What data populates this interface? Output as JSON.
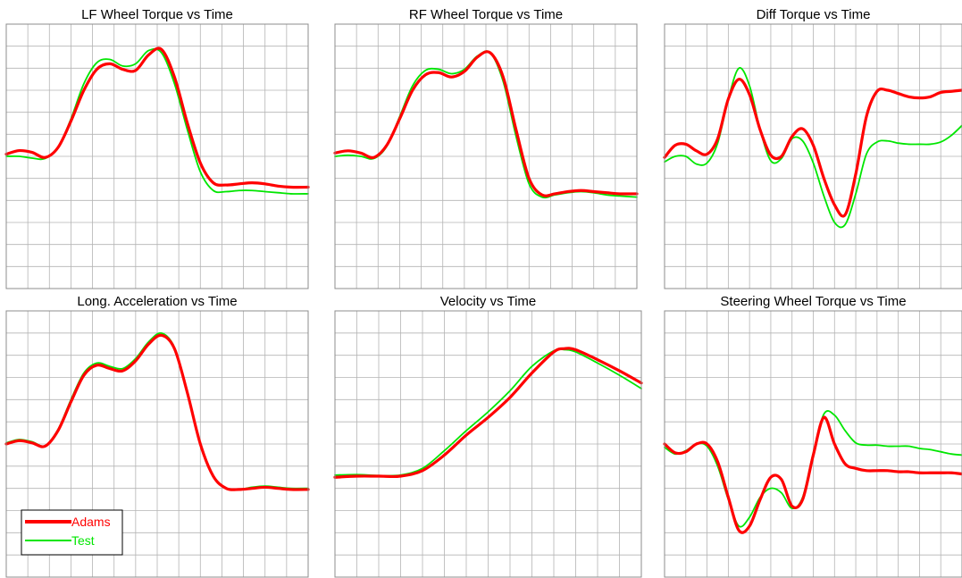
{
  "colors": {
    "adams": "#ff0000",
    "test": "#00e600",
    "grid": "#b4b4b4",
    "axis": "#8c8c8c",
    "text": "#000000"
  },
  "legend": {
    "entries": [
      "Adams",
      "Test"
    ],
    "placement": "bottom-left of Long. Acceleration plot"
  },
  "chart_data": [
    {
      "type": "line",
      "title": "LF Wheel Torque vs Time",
      "xlabel": "",
      "ylabel": "",
      "xlim": [
        0,
        14
      ],
      "ylim": [
        -6,
        6
      ],
      "grid": true,
      "series": [
        {
          "name": "Adams",
          "color": "#ff0000",
          "x": [
            0,
            0.6,
            1.2,
            1.8,
            2.4,
            3.0,
            3.6,
            4.2,
            4.8,
            5.4,
            6.0,
            6.6,
            7.2,
            7.8,
            8.4,
            9.0,
            9.6,
            10.2,
            10.8,
            11.4,
            12.0,
            12.6,
            13.2,
            14.0
          ],
          "y": [
            0.1,
            0.26,
            0.18,
            -0.05,
            0.4,
            1.6,
            3.0,
            3.95,
            4.2,
            3.95,
            3.9,
            4.6,
            4.85,
            3.6,
            1.5,
            -0.3,
            -1.2,
            -1.3,
            -1.25,
            -1.2,
            -1.25,
            -1.35,
            -1.4,
            -1.4
          ]
        },
        {
          "name": "Test",
          "color": "#00e600",
          "x": [
            0,
            0.6,
            1.2,
            1.8,
            2.4,
            3.0,
            3.6,
            4.2,
            4.8,
            5.4,
            6.0,
            6.6,
            7.2,
            7.8,
            8.4,
            9.0,
            9.6,
            10.2,
            10.8,
            11.4,
            12.0,
            12.6,
            13.2,
            14.0
          ],
          "y": [
            0.0,
            0.0,
            -0.08,
            -0.1,
            0.4,
            1.7,
            3.3,
            4.25,
            4.4,
            4.1,
            4.2,
            4.8,
            4.7,
            3.3,
            1.2,
            -0.7,
            -1.55,
            -1.6,
            -1.55,
            -1.55,
            -1.6,
            -1.65,
            -1.7,
            -1.7
          ]
        }
      ]
    },
    {
      "type": "line",
      "title": "RF Wheel Torque vs Time",
      "xlabel": "",
      "ylabel": "",
      "xlim": [
        0,
        14
      ],
      "ylim": [
        -6,
        6
      ],
      "grid": true,
      "series": [
        {
          "name": "Adams",
          "color": "#ff0000",
          "x": [
            0,
            0.6,
            1.2,
            1.8,
            2.4,
            3.0,
            3.6,
            4.2,
            4.8,
            5.4,
            6.0,
            6.6,
            7.2,
            7.8,
            8.4,
            9.0,
            9.6,
            10.2,
            10.8,
            11.4,
            12.0,
            12.6,
            13.2,
            14.0
          ],
          "y": [
            0.15,
            0.25,
            0.15,
            -0.05,
            0.5,
            1.7,
            3.0,
            3.7,
            3.8,
            3.6,
            3.85,
            4.5,
            4.7,
            3.6,
            1.2,
            -1.0,
            -1.75,
            -1.7,
            -1.6,
            -1.55,
            -1.6,
            -1.65,
            -1.7,
            -1.7
          ]
        },
        {
          "name": "Test",
          "color": "#00e600",
          "x": [
            0,
            0.6,
            1.2,
            1.8,
            2.4,
            3.0,
            3.6,
            4.2,
            4.8,
            5.4,
            6.0,
            6.6,
            7.2,
            7.8,
            8.4,
            9.0,
            9.6,
            10.2,
            10.8,
            11.4,
            12.0,
            12.6,
            13.2,
            14.0
          ],
          "y": [
            0.0,
            0.05,
            0.0,
            -0.1,
            0.45,
            1.8,
            3.2,
            3.9,
            3.95,
            3.75,
            3.95,
            4.55,
            4.7,
            3.4,
            0.9,
            -1.25,
            -1.85,
            -1.75,
            -1.65,
            -1.6,
            -1.65,
            -1.75,
            -1.8,
            -1.85
          ]
        }
      ]
    },
    {
      "type": "line",
      "title": "Diff Torque vs Time",
      "xlabel": "",
      "ylabel": "",
      "xlim": [
        0,
        14
      ],
      "ylim": [
        -6,
        6
      ],
      "grid": true,
      "series": [
        {
          "name": "Adams",
          "color": "#ff0000",
          "x": [
            0,
            0.5,
            1.0,
            1.5,
            2.0,
            2.5,
            3.0,
            3.5,
            4.0,
            4.5,
            5.0,
            5.5,
            6.0,
            6.5,
            7.0,
            7.5,
            8.0,
            8.5,
            9.0,
            9.5,
            10.0,
            10.5,
            11.0,
            11.5,
            12.0,
            12.5,
            13.0,
            13.5,
            14.0
          ],
          "y": [
            -0.05,
            0.5,
            0.55,
            0.25,
            0.1,
            0.8,
            2.6,
            3.5,
            2.8,
            1.2,
            0.05,
            0.0,
            0.9,
            1.25,
            0.5,
            -1.0,
            -2.2,
            -2.65,
            -0.8,
            1.8,
            2.95,
            3.0,
            2.85,
            2.7,
            2.65,
            2.7,
            2.9,
            2.95,
            3.0
          ]
        },
        {
          "name": "Test",
          "color": "#00e600",
          "x": [
            0,
            0.5,
            1.0,
            1.5,
            2.0,
            2.5,
            3.0,
            3.5,
            4.0,
            4.5,
            5.0,
            5.5,
            6.0,
            6.5,
            7.0,
            7.5,
            8.0,
            8.5,
            9.0,
            9.5,
            10.0,
            10.5,
            11.0,
            11.5,
            12.0,
            12.5,
            13.0,
            13.5,
            14.0
          ],
          "y": [
            -0.25,
            0.0,
            0.0,
            -0.35,
            -0.3,
            0.6,
            2.6,
            4.0,
            3.2,
            1.2,
            -0.2,
            -0.1,
            0.8,
            0.7,
            -0.3,
            -1.8,
            -3.0,
            -3.1,
            -1.7,
            0.1,
            0.65,
            0.7,
            0.6,
            0.55,
            0.55,
            0.55,
            0.65,
            0.95,
            1.4
          ]
        }
      ]
    },
    {
      "type": "line",
      "title": "Long. Acceleration vs Time",
      "xlabel": "",
      "ylabel": "",
      "xlim": [
        0,
        14
      ],
      "ylim": [
        -6,
        6
      ],
      "grid": true,
      "series": [
        {
          "name": "Adams",
          "color": "#ff0000",
          "x": [
            0,
            0.6,
            1.2,
            1.8,
            2.4,
            3.0,
            3.6,
            4.2,
            4.8,
            5.4,
            6.0,
            6.6,
            7.2,
            7.8,
            8.4,
            9.0,
            9.6,
            10.2,
            10.8,
            11.4,
            12.0,
            12.6,
            13.2,
            14.0
          ],
          "y": [
            0.0,
            0.15,
            0.05,
            -0.1,
            0.6,
            1.9,
            3.1,
            3.55,
            3.4,
            3.3,
            3.75,
            4.5,
            4.9,
            4.3,
            2.3,
            0.0,
            -1.45,
            -2.0,
            -2.05,
            -2.0,
            -1.95,
            -2.0,
            -2.05,
            -2.05
          ]
        },
        {
          "name": "Test",
          "color": "#00e600",
          "x": [
            0,
            0.6,
            1.2,
            1.8,
            2.4,
            3.0,
            3.6,
            4.2,
            4.8,
            5.4,
            6.0,
            6.6,
            7.2,
            7.8,
            8.4,
            9.0,
            9.6,
            10.2,
            10.8,
            11.4,
            12.0,
            12.6,
            13.2,
            14.0
          ],
          "y": [
            0.05,
            0.2,
            0.1,
            -0.08,
            0.65,
            2.0,
            3.2,
            3.65,
            3.5,
            3.4,
            3.85,
            4.6,
            5.0,
            4.35,
            2.35,
            0.0,
            -1.45,
            -2.0,
            -2.05,
            -1.95,
            -1.9,
            -1.95,
            -2.0,
            -2.0
          ]
        }
      ]
    },
    {
      "type": "line",
      "title": "Velocity vs Time",
      "xlabel": "",
      "ylabel": "",
      "xlim": [
        0,
        14
      ],
      "ylim": [
        -6,
        6
      ],
      "grid": true,
      "series": [
        {
          "name": "Adams",
          "color": "#ff0000",
          "x": [
            0,
            1,
            2,
            3,
            4,
            5,
            6,
            7,
            8,
            9,
            10,
            10.5,
            11,
            12,
            13,
            14
          ],
          "y": [
            -1.5,
            -1.45,
            -1.45,
            -1.45,
            -1.2,
            -0.5,
            0.4,
            1.2,
            2.1,
            3.2,
            4.15,
            4.3,
            4.25,
            3.8,
            3.3,
            2.75
          ]
        },
        {
          "name": "Test",
          "color": "#00e600",
          "x": [
            0,
            1,
            2,
            3,
            4,
            5,
            6,
            7,
            8,
            9,
            10,
            10.5,
            11,
            12,
            13,
            14
          ],
          "y": [
            -1.4,
            -1.38,
            -1.42,
            -1.4,
            -1.1,
            -0.3,
            0.6,
            1.45,
            2.4,
            3.5,
            4.2,
            4.25,
            4.15,
            3.65,
            3.1,
            2.5
          ]
        }
      ]
    },
    {
      "type": "line",
      "title": "Steering Wheel Torque vs Time",
      "xlabel": "",
      "ylabel": "",
      "xlim": [
        0,
        14
      ],
      "ylim": [
        -6,
        6
      ],
      "grid": true,
      "series": [
        {
          "name": "Adams",
          "color": "#ff0000",
          "x": [
            0,
            0.5,
            1.0,
            1.5,
            2.0,
            2.5,
            3.0,
            3.5,
            4.0,
            4.5,
            5.0,
            5.5,
            6.0,
            6.5,
            7.0,
            7.5,
            8.0,
            8.5,
            9.0,
            9.5,
            10.0,
            10.5,
            11.0,
            11.5,
            12.0,
            12.5,
            13.0,
            13.5,
            14.0
          ],
          "y": [
            0.0,
            -0.4,
            -0.35,
            0.0,
            0.0,
            -0.8,
            -2.4,
            -3.9,
            -3.7,
            -2.5,
            -1.5,
            -1.6,
            -2.8,
            -2.5,
            -0.5,
            1.2,
            0.0,
            -0.9,
            -1.1,
            -1.2,
            -1.2,
            -1.2,
            -1.25,
            -1.25,
            -1.3,
            -1.3,
            -1.3,
            -1.3,
            -1.35
          ]
        },
        {
          "name": "Test",
          "color": "#00e600",
          "x": [
            0,
            0.5,
            1.0,
            1.5,
            2.0,
            2.5,
            3.0,
            3.5,
            4.0,
            4.5,
            5.0,
            5.5,
            6.0,
            6.5,
            7.0,
            7.5,
            8.0,
            8.5,
            9.0,
            9.5,
            10.0,
            10.5,
            11.0,
            11.5,
            12.0,
            12.5,
            13.0,
            13.5,
            14.0
          ],
          "y": [
            -0.15,
            -0.45,
            -0.3,
            0.0,
            -0.1,
            -1.0,
            -2.5,
            -3.7,
            -3.3,
            -2.4,
            -2.0,
            -2.2,
            -2.9,
            -2.4,
            -0.4,
            1.35,
            1.3,
            0.6,
            0.05,
            -0.05,
            -0.05,
            -0.1,
            -0.1,
            -0.1,
            -0.2,
            -0.25,
            -0.35,
            -0.45,
            -0.5
          ]
        }
      ]
    }
  ]
}
